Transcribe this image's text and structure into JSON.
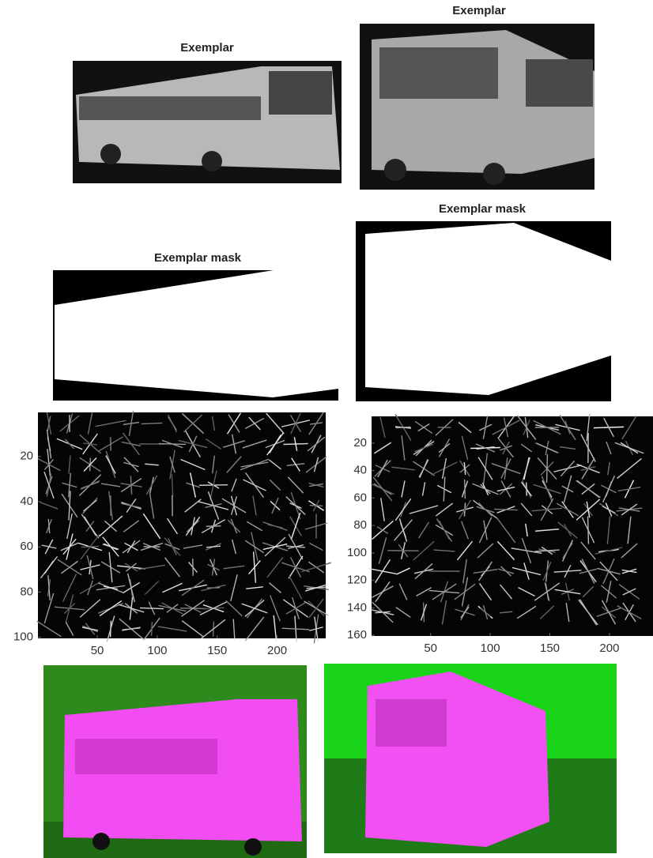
{
  "panels": [
    {
      "title": "Exemplar"
    },
    {
      "title": "Exemplar"
    },
    {
      "title": "Exemplar mask"
    },
    {
      "title": "Exemplar mask"
    }
  ],
  "hog_plots": [
    {
      "xlim": [
        0.5,
        240.5
      ],
      "ylim": [
        0.5,
        100.5
      ],
      "xticks": [
        50,
        100,
        150,
        200
      ],
      "yticks": [
        20,
        40,
        60,
        80,
        100
      ]
    },
    {
      "xlim": [
        0.5,
        236.5
      ],
      "ylim": [
        0.5,
        160.5
      ],
      "xticks": [
        50,
        100,
        150,
        200
      ],
      "yticks": [
        20,
        40,
        60,
        80,
        100,
        120,
        140,
        160
      ]
    }
  ]
}
